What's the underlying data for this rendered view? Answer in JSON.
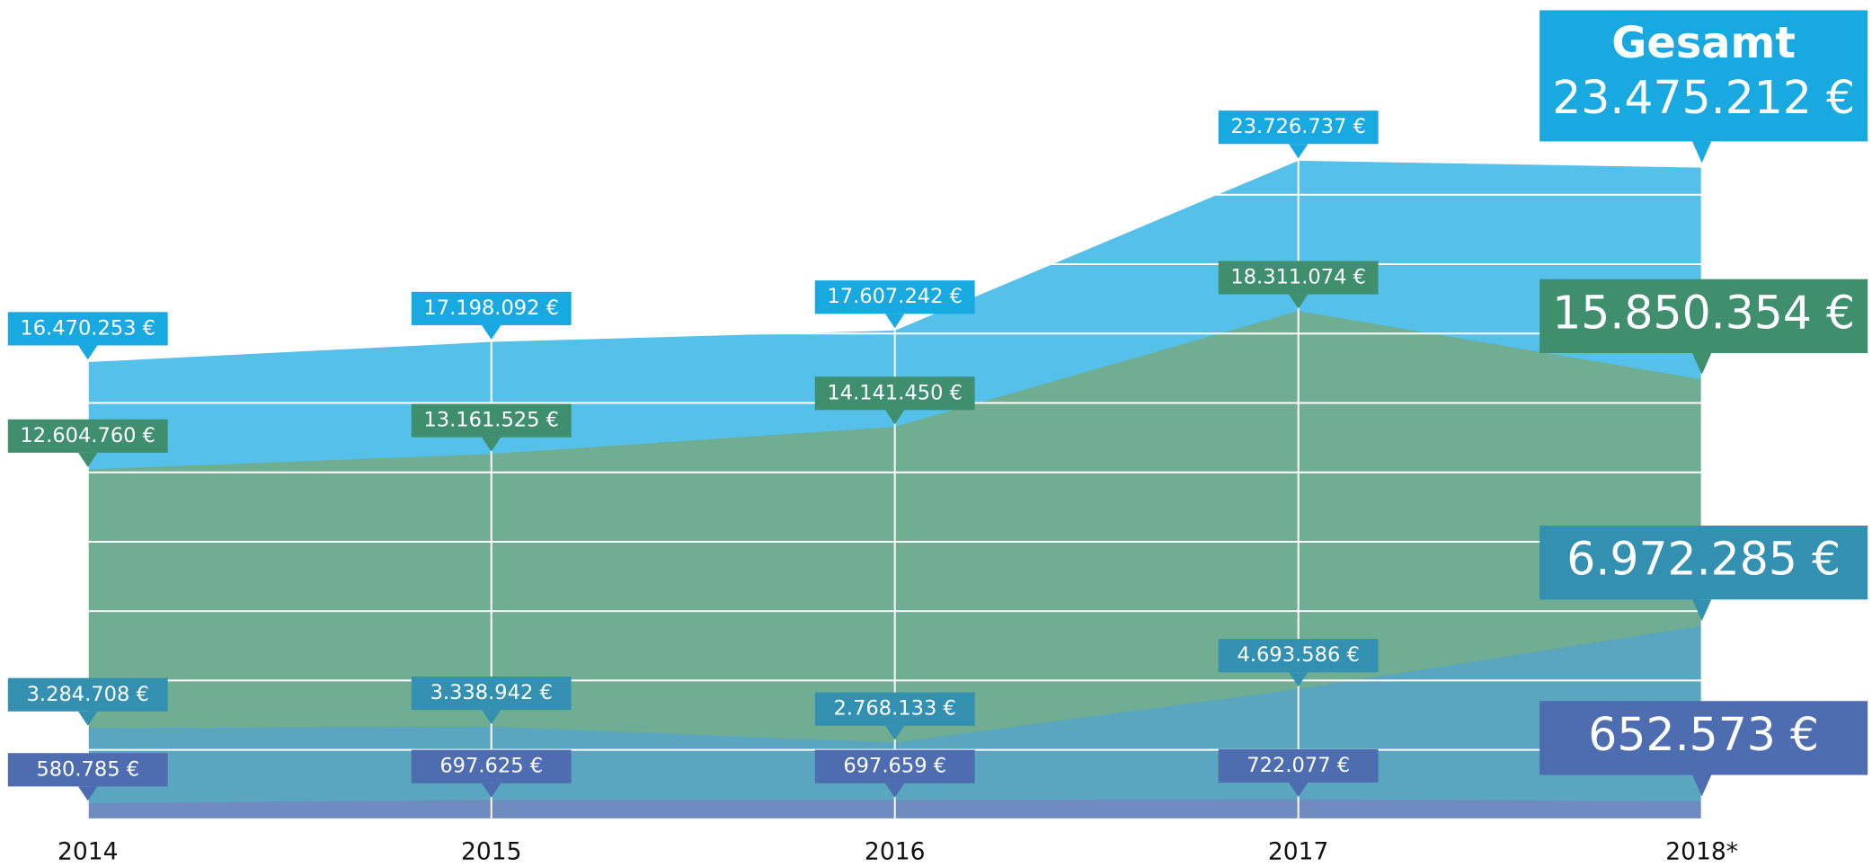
{
  "chart_data": {
    "type": "area",
    "categories": [
      "2014",
      "2015",
      "2016",
      "2017",
      "2018*"
    ],
    "series": [
      {
        "name": "Gesamt",
        "color": "#55c0ea",
        "label_color": "#18a9e1",
        "values": [
          16470253,
          17198092,
          17607242,
          23726737,
          23475212
        ],
        "value_labels": [
          "16.470.253 €",
          "17.198.092 €",
          "17.607.242 €",
          "23.726.737 €",
          "23.475.212 €"
        ]
      },
      {
        "color": "#6fae93",
        "label_color": "#3f8f6f",
        "values": [
          12604760,
          13161525,
          14141450,
          18311074,
          15850354
        ],
        "value_labels": [
          "12.604.760 €",
          "13.161.525 €",
          "14.141.450 €",
          "18.311.074 €",
          "15.850.354 €"
        ]
      },
      {
        "color": "#5aa5bf",
        "label_color": "#3390b0",
        "values": [
          3284708,
          3338942,
          2768133,
          4693586,
          6972285
        ],
        "value_labels": [
          "3.284.708 €",
          "3.338.942 €",
          "2.768.133 €",
          "4.693.586 €",
          "6.972.285 €"
        ]
      },
      {
        "color": "#6f8bbf",
        "label_color": "#4d6db0",
        "values": [
          580785,
          697625,
          697659,
          722077,
          652573
        ],
        "value_labels": [
          "580.785 €",
          "697.625 €",
          "697.659 €",
          "722.077 €",
          "652.573 €"
        ]
      }
    ],
    "ylim": [
      0,
      29000000
    ],
    "yticks": [
      0,
      2500000,
      5000000,
      7500000,
      10000000,
      12500000,
      15000000,
      17500000,
      20000000,
      22500000
    ],
    "grid": true
  }
}
